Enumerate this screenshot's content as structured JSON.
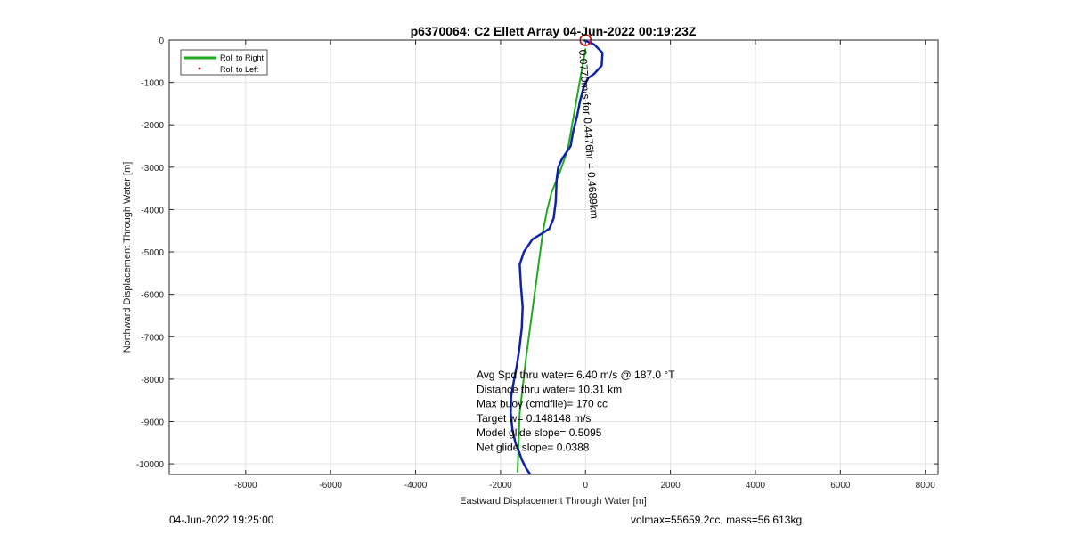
{
  "chart_data": {
    "type": "line",
    "title": "p6370064: C2 Ellett Array 04-Jun-2022 00:19:23Z",
    "xlabel": "Eastward Displacement Through Water [m]",
    "ylabel": "Northward Displacement Through Water [m]",
    "xlim": [
      -9800,
      8300
    ],
    "ylim": [
      -10250,
      0
    ],
    "xticks": [
      -8000,
      -6000,
      -4000,
      -2000,
      0,
      2000,
      4000,
      6000,
      8000
    ],
    "yticks": [
      0,
      -1000,
      -2000,
      -3000,
      -4000,
      -5000,
      -6000,
      -7000,
      -8000,
      -9000,
      -10000
    ],
    "grid": true,
    "legend_position": "top-left",
    "legend": [
      {
        "label": "Roll to Right",
        "color": "#22aa22",
        "marker": "line"
      },
      {
        "label": "Roll to Left",
        "color": "#dd0000",
        "marker": "dot"
      }
    ],
    "series": [
      {
        "name": "Roll to Right",
        "color": "#22aa22",
        "x": [
          0,
          -420,
          -600,
          -800,
          -900,
          -1000,
          -1200,
          -1400,
          -1550,
          -1600
        ],
        "y": [
          -200,
          -2600,
          -3100,
          -3600,
          -4000,
          -4500,
          -6000,
          -7500,
          -8800,
          -10200
        ]
      }
    ],
    "track": {
      "color": "#1122aa",
      "x": [
        -40,
        200,
        400,
        380,
        200,
        60,
        -40,
        -120,
        -200,
        -300,
        -350,
        -450,
        -550,
        -640,
        -680,
        -700,
        -750,
        -850,
        -1000,
        -1250,
        -1450,
        -1550,
        -1520,
        -1480,
        -1500,
        -1560,
        -1620,
        -1680,
        -1750,
        -1760,
        -1720,
        -1650,
        -1570,
        -1500,
        -1400,
        -1300
      ],
      "y": [
        0,
        -100,
        -300,
        -600,
        -800,
        -900,
        -1100,
        -1400,
        -1800,
        -2200,
        -2500,
        -2650,
        -2800,
        -3000,
        -3300,
        -3800,
        -4200,
        -4450,
        -4550,
        -4700,
        -5000,
        -5300,
        -5800,
        -6300,
        -6800,
        -7300,
        -7700,
        -8000,
        -8400,
        -8800,
        -9200,
        -9500,
        -9700,
        -9900,
        -10100,
        -10250
      ]
    },
    "start_marker": {
      "x": 0,
      "y": 0,
      "color": "#dd0000"
    },
    "annotations": {
      "vertical": "0.0770m/s for 0.4476hr = 0.4689km",
      "stats": [
        "Avg Spd thru water=  6.40 m/s @ 187.0 °T",
        "Distance thru water= 10.31 km",
        "Max buoy (cmdfile)= 170 cc",
        "Target w= 0.148148 m/s",
        "Model glide slope= 0.5095",
        "Net glide slope= 0.0388"
      ]
    }
  },
  "footer": {
    "left": "04-Jun-2022 19:25:00",
    "right": "volmax=55659.2cc, mass=56.613kg"
  }
}
